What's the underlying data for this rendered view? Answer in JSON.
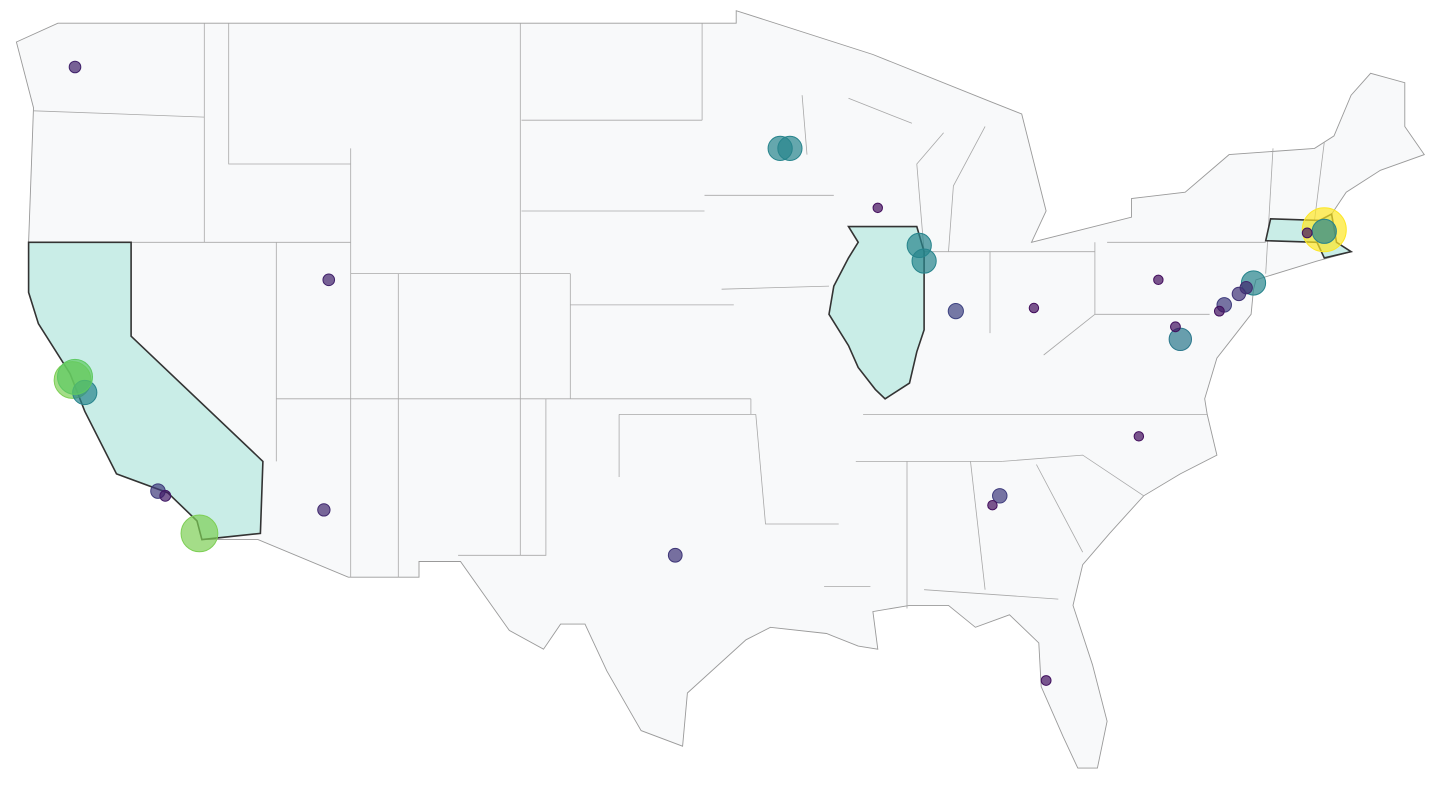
{
  "map": {
    "value_range": [
      0,
      100
    ],
    "color_scale": [
      "#440154",
      "#3b528b",
      "#21918c",
      "#5ec962",
      "#fde725"
    ],
    "opacity": 0.7,
    "points": [
      {
        "lon": -122.3,
        "lat": 47.6,
        "value": 10
      },
      {
        "lon": -93.4,
        "lat": 45.0,
        "value": 45
      },
      {
        "lon": -93.0,
        "lat": 45.0,
        "value": 45
      },
      {
        "lon": -89.4,
        "lat": 43.1,
        "value": 4
      },
      {
        "lon": -87.7,
        "lat": 41.9,
        "value": 45
      },
      {
        "lon": -87.5,
        "lat": 41.4,
        "value": 45
      },
      {
        "lon": -111.9,
        "lat": 40.8,
        "value": 10
      },
      {
        "lon": -86.2,
        "lat": 39.8,
        "value": 20
      },
      {
        "lon": -83.0,
        "lat": 39.9,
        "value": 4
      },
      {
        "lon": -77.9,
        "lat": 40.8,
        "value": 4
      },
      {
        "lon": -74.0,
        "lat": 40.7,
        "value": 45
      },
      {
        "lon": -74.3,
        "lat": 40.55,
        "value": 12
      },
      {
        "lon": -74.6,
        "lat": 40.35,
        "value": 15
      },
      {
        "lon": -75.2,
        "lat": 40.0,
        "value": 18
      },
      {
        "lon": -75.4,
        "lat": 39.8,
        "value": 5
      },
      {
        "lon": -77.0,
        "lat": 38.9,
        "value": 40
      },
      {
        "lon": -77.2,
        "lat": 39.3,
        "value": 5
      },
      {
        "lon": -71.1,
        "lat": 42.4,
        "value": 100
      },
      {
        "lon": -71.1,
        "lat": 42.35,
        "value": 45
      },
      {
        "lon": -71.8,
        "lat": 42.3,
        "value": 5
      },
      {
        "lon": -122.4,
        "lat": 37.6,
        "value": 80
      },
      {
        "lon": -121.9,
        "lat": 37.2,
        "value": 45
      },
      {
        "lon": -122.3,
        "lat": 37.7,
        "value": 75
      },
      {
        "lon": -118.9,
        "lat": 34.05,
        "value": 18
      },
      {
        "lon": -118.6,
        "lat": 33.9,
        "value": 8
      },
      {
        "lon": -117.2,
        "lat": 32.7,
        "value": 80
      },
      {
        "lon": -112.1,
        "lat": 33.45,
        "value": 12
      },
      {
        "lon": -97.7,
        "lat": 32.0,
        "value": 16
      },
      {
        "lon": -78.7,
        "lat": 35.8,
        "value": 4
      },
      {
        "lon": -84.4,
        "lat": 33.9,
        "value": 18
      },
      {
        "lon": -84.7,
        "lat": 33.6,
        "value": 4
      },
      {
        "lon": -82.5,
        "lat": 28.0,
        "value": 5
      }
    ]
  }
}
